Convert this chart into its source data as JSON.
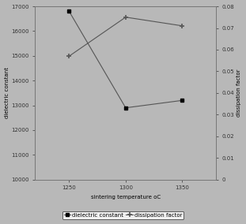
{
  "x": [
    1250,
    1300,
    1350
  ],
  "dielectric_constant": [
    16800,
    12900,
    13200
  ],
  "dissipation_factor": [
    0.057,
    0.075,
    0.071
  ],
  "left_ylim": [
    10000,
    17000
  ],
  "right_ylim": [
    0,
    0.08
  ],
  "left_yticks": [
    10000,
    11000,
    12000,
    13000,
    14000,
    15000,
    16000,
    17000
  ],
  "right_yticks": [
    0,
    0.01,
    0.02,
    0.03,
    0.04,
    0.05,
    0.06,
    0.07,
    0.08
  ],
  "right_yticklabels": [
    "0",
    "0.01",
    "0.02",
    "0.03",
    "0.04",
    "0.05",
    "0.06",
    "0.07",
    "0.08"
  ],
  "xticks": [
    1250,
    1300,
    1350
  ],
  "xlabel": "sintering temperature oC",
  "ylabel_left": "dielectric constant",
  "ylabel_right": "dissipation factor",
  "line_color": "#555555",
  "legend_labels": [
    "dielectric constant",
    "dissipation factor"
  ],
  "background_color": "#b8b8b8",
  "fontsize_tick": 5,
  "fontsize_label": 5,
  "fontsize_legend": 5
}
